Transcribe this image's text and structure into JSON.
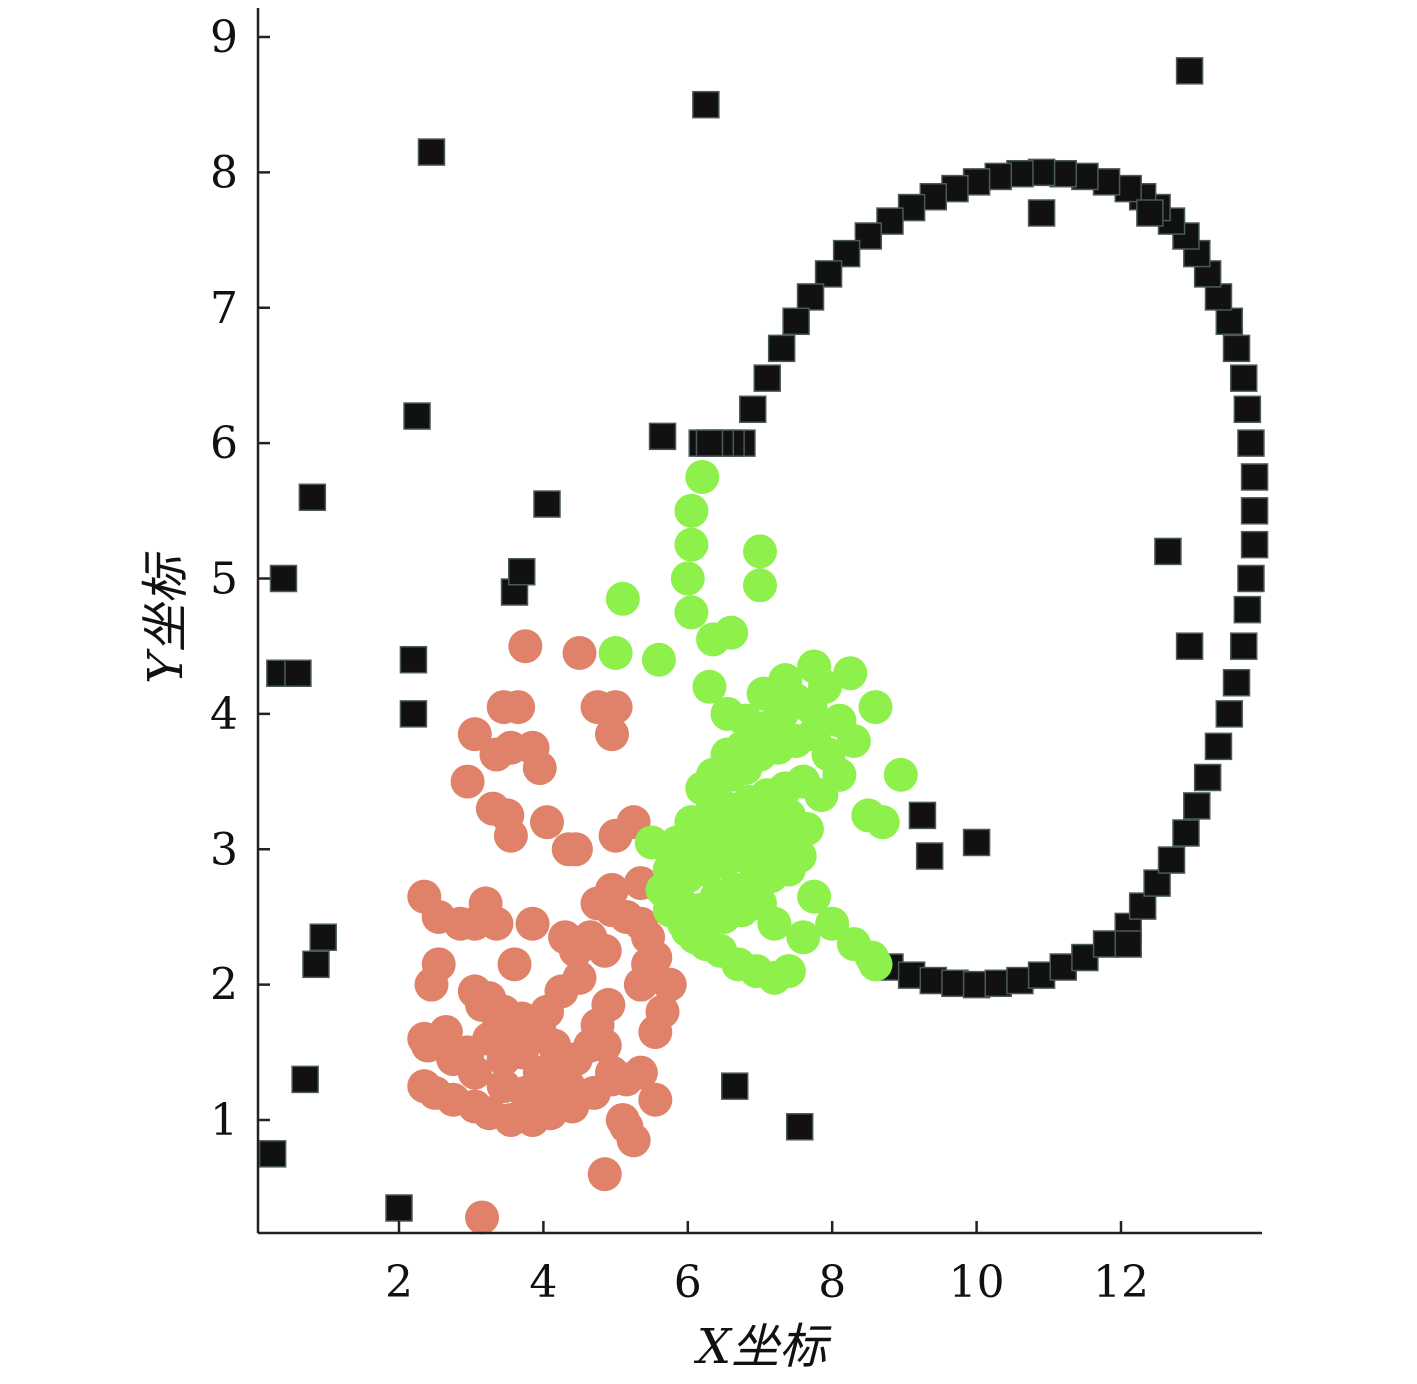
{
  "chart_data": {
    "type": "scatter",
    "title": "",
    "xlabel": "X坐标",
    "ylabel": "Y坐标",
    "xlim": [
      0.2,
      13.95
    ],
    "ylim": [
      0.2,
      9.35
    ],
    "xticks": [
      2,
      4,
      6,
      8,
      10,
      12
    ],
    "yticks": [
      1,
      2,
      3,
      4,
      5,
      6,
      7,
      8,
      9
    ],
    "grid": false,
    "legend": "none",
    "series": [
      {
        "marker": "square",
        "color": "#111111",
        "description": "ring points",
        "x": [
          8.8,
          9.1,
          9.4,
          9.7,
          10.0,
          10.3,
          10.6,
          10.9,
          11.2,
          11.5,
          11.8,
          12.1,
          12.3,
          12.5,
          12.7,
          12.9,
          13.05,
          13.2,
          13.35,
          13.5,
          13.6,
          13.7,
          13.75,
          13.8,
          13.85,
          13.85,
          13.85,
          13.8,
          13.75,
          13.7,
          13.6,
          13.5,
          13.35,
          13.2,
          13.05,
          12.9,
          12.7,
          12.5,
          12.3,
          12.1,
          11.8,
          11.5,
          11.2,
          10.9,
          10.6,
          10.3,
          10.0,
          9.7,
          9.4,
          9.1,
          8.8,
          8.5,
          8.2,
          7.95,
          7.7,
          7.5,
          7.3,
          7.1,
          6.9,
          6.75,
          6.6,
          6.45,
          6.3,
          6.2
        ],
        "y": [
          2.13,
          2.07,
          2.03,
          2.01,
          2.0,
          2.01,
          2.03,
          2.07,
          2.13,
          2.2,
          2.3,
          2.43,
          2.58,
          2.75,
          2.92,
          3.12,
          3.32,
          3.53,
          3.76,
          4.0,
          4.23,
          4.5,
          4.77,
          5.0,
          5.25,
          5.5,
          5.75,
          6.0,
          6.25,
          6.48,
          6.7,
          6.9,
          7.08,
          7.25,
          7.4,
          7.53,
          7.64,
          7.74,
          7.82,
          7.88,
          7.93,
          7.97,
          7.99,
          8.0,
          7.99,
          7.97,
          7.93,
          7.88,
          7.82,
          7.74,
          7.64,
          7.53,
          7.4,
          7.25,
          7.08,
          6.9,
          6.7,
          6.48,
          6.25,
          6.0,
          6.0,
          6.0,
          6.0,
          6.0
        ]
      },
      {
        "marker": "square",
        "color": "#111111",
        "description": "scattered black points",
        "x": [
          0.25,
          2.0,
          0.35,
          0.7,
          0.85,
          0.95,
          0.4,
          0.8,
          0.6,
          2.2,
          2.2,
          2.25,
          2.45,
          3.6,
          3.7,
          4.05,
          5.65,
          6.3,
          6.65,
          7.55,
          6.25,
          12.95,
          9.25,
          9.35,
          10.0,
          10.9,
          12.4,
          12.65,
          12.95,
          12.1
        ],
        "y": [
          0.75,
          0.35,
          4.3,
          1.3,
          2.15,
          2.35,
          5.0,
          5.6,
          4.3,
          4.0,
          4.4,
          6.2,
          8.15,
          4.9,
          5.05,
          5.55,
          6.05,
          6.0,
          1.25,
          0.95,
          8.5,
          8.75,
          3.25,
          2.95,
          3.05,
          7.7,
          7.7,
          5.2,
          4.5,
          2.3
        ]
      },
      {
        "marker": "circle",
        "color": "#e0826a",
        "description": "orange cluster",
        "x": [
          3.15,
          4.85,
          5.25,
          3.75,
          4.5,
          4.75,
          5.0,
          4.95,
          3.45,
          3.65,
          3.05,
          3.35,
          3.55,
          3.85,
          3.95,
          2.95,
          3.3,
          3.5,
          3.55,
          4.05,
          4.35,
          4.45,
          5.0,
          5.25,
          4.95,
          5.35,
          4.75,
          4.95,
          5.15,
          5.35,
          4.65,
          4.85,
          5.45,
          2.35,
          2.55,
          2.85,
          3.05,
          3.2,
          3.35,
          2.45,
          2.55,
          3.05,
          3.25,
          3.45,
          3.7,
          3.95,
          4.05,
          4.25,
          4.5,
          2.4,
          2.65,
          2.95,
          3.25,
          3.45,
          3.7,
          3.95,
          4.2,
          4.45,
          4.65,
          4.85,
          5.15,
          2.35,
          2.5,
          2.75,
          3.05,
          3.25,
          3.55,
          3.85,
          4.1,
          4.4,
          4.7,
          4.95,
          5.1,
          2.35,
          2.75,
          3.05,
          3.45,
          3.75,
          4.05,
          4.35,
          4.95,
          5.35,
          5.55,
          3.15,
          3.35,
          3.55,
          4.15,
          5.55,
          5.65,
          5.75,
          5.55,
          5.45,
          3.6,
          4.3,
          4.75,
          3.85,
          5.15,
          4.45,
          4.9,
          5.35
        ],
        "y": [
          0.28,
          0.6,
          0.85,
          4.5,
          4.45,
          4.05,
          4.05,
          3.85,
          4.05,
          4.05,
          3.85,
          3.7,
          3.75,
          3.75,
          3.6,
          3.5,
          3.3,
          3.25,
          3.1,
          3.2,
          3.0,
          3.0,
          3.1,
          3.2,
          2.7,
          2.75,
          2.6,
          2.55,
          2.5,
          2.45,
          2.35,
          2.25,
          2.15,
          2.65,
          2.5,
          2.45,
          2.45,
          2.6,
          2.45,
          2.0,
          2.15,
          1.95,
          1.9,
          1.8,
          1.75,
          1.65,
          1.8,
          1.95,
          2.05,
          1.55,
          1.65,
          1.5,
          1.6,
          1.45,
          1.5,
          1.35,
          1.4,
          1.45,
          1.55,
          1.55,
          1.3,
          1.25,
          1.2,
          1.15,
          1.1,
          1.05,
          1.0,
          1.0,
          1.05,
          1.1,
          1.2,
          1.3,
          1.0,
          1.6,
          1.45,
          1.35,
          1.25,
          1.2,
          1.15,
          1.25,
          1.35,
          1.35,
          1.15,
          1.85,
          1.65,
          1.7,
          1.55,
          1.65,
          1.8,
          2.0,
          2.2,
          2.35,
          2.15,
          2.35,
          1.7,
          2.45,
          0.95,
          2.25,
          1.85,
          2.0
        ]
      },
      {
        "marker": "circle",
        "color": "#8ef04a",
        "description": "green cluster",
        "x": [
          6.2,
          6.05,
          6.05,
          6.0,
          6.05,
          7.0,
          7.0,
          5.1,
          5.0,
          5.6,
          6.35,
          6.6,
          7.75,
          8.25,
          8.6,
          8.95,
          8.3,
          8.1,
          8.5,
          8.7,
          8.6,
          7.6,
          7.4,
          7.2,
          6.95,
          6.7,
          6.45,
          6.25,
          6.1,
          5.95,
          5.75,
          5.65,
          5.5,
          6.35,
          6.55,
          6.75,
          6.9,
          7.1,
          7.3,
          7.5,
          7.7,
          7.9,
          8.1,
          6.2,
          6.4,
          6.6,
          6.8,
          7.0,
          7.25,
          7.5,
          7.75,
          7.95,
          6.05,
          6.3,
          6.55,
          6.85,
          7.1,
          7.35,
          7.6,
          7.85,
          5.85,
          6.1,
          6.35,
          6.6,
          6.9,
          7.15,
          7.4,
          7.65,
          5.75,
          6.0,
          6.25,
          6.5,
          6.8,
          7.05,
          7.3,
          7.55,
          5.9,
          6.15,
          6.4,
          6.65,
          6.9,
          7.15,
          7.4,
          6.0,
          6.25,
          6.5,
          6.75,
          7.0,
          7.2,
          6.3,
          6.55,
          6.8,
          7.05,
          7.35,
          6.85,
          7.15,
          7.45,
          7.75,
          8.0,
          8.3,
          8.55
        ],
        "y": [
          5.75,
          5.5,
          5.25,
          5.0,
          4.75,
          5.2,
          4.95,
          4.85,
          4.45,
          4.4,
          4.55,
          4.6,
          4.35,
          4.3,
          4.05,
          3.55,
          3.8,
          3.55,
          3.25,
          3.2,
          2.15,
          2.35,
          2.1,
          2.05,
          2.1,
          2.15,
          2.25,
          2.3,
          2.35,
          2.45,
          2.55,
          2.7,
          3.05,
          3.55,
          3.7,
          3.75,
          3.85,
          3.9,
          4.0,
          4.1,
          4.05,
          4.2,
          3.95,
          3.45,
          3.5,
          3.55,
          3.6,
          3.7,
          3.75,
          3.8,
          3.85,
          3.7,
          3.2,
          3.25,
          3.3,
          3.35,
          3.4,
          3.45,
          3.5,
          3.4,
          3.05,
          3.0,
          3.05,
          3.1,
          3.15,
          3.2,
          3.25,
          3.15,
          2.85,
          2.8,
          2.85,
          2.9,
          2.95,
          3.0,
          3.05,
          2.95,
          2.6,
          2.55,
          2.65,
          2.7,
          2.75,
          2.8,
          2.85,
          2.4,
          2.45,
          2.5,
          2.55,
          2.6,
          2.45,
          4.2,
          4.0,
          3.95,
          4.15,
          4.25,
          3.3,
          3.15,
          3.0,
          2.65,
          2.45,
          2.3,
          2.2
        ]
      }
    ]
  }
}
